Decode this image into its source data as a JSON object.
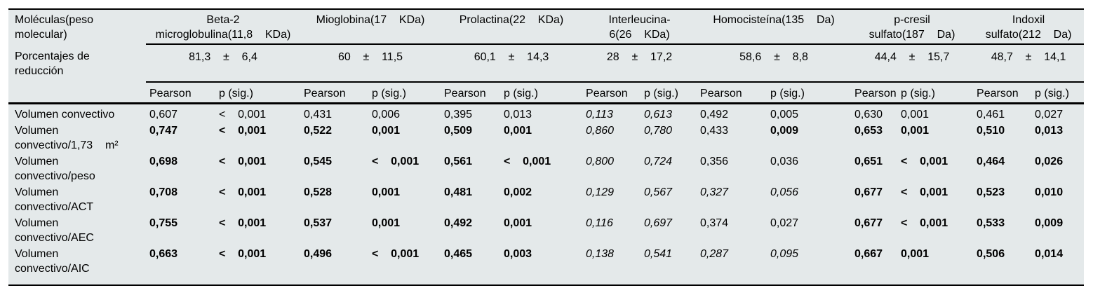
{
  "table": {
    "corner_header": "Moléculas(peso\nmolecular)",
    "reduction_label": "Porcentajes de\nreducción",
    "subheaders": {
      "pearson": "Pearson",
      "p": "p (sig.)"
    },
    "molecules": [
      {
        "name": "Beta-2\nmicroglobulina(11,8    KDa)",
        "reduction": "81,3    ±    6,4"
      },
      {
        "name": "Mioglobina(17    KDa)",
        "reduction": "60    ±    11,5"
      },
      {
        "name": "Prolactina(22    KDa)",
        "reduction": "60,1    ±    14,3"
      },
      {
        "name": "Interleucina-\n6(26    KDa)",
        "reduction": "28    ±    17,2"
      },
      {
        "name": "Homocisteína(135    Da)",
        "reduction": "58,6    ±    8,8"
      },
      {
        "name": "p-cresil\nsulfato(187    Da)",
        "reduction": "44,4    ±    15,7"
      },
      {
        "name": "Indoxil\nsulfato(212    Da)",
        "reduction": "48,7    ±    14,1"
      }
    ],
    "rows": [
      {
        "label": "Volumen convectivo",
        "cells": [
          {
            "t": "0,607",
            "s": "n"
          },
          {
            "t": "<    0,001",
            "s": "n"
          },
          {
            "t": "0,431",
            "s": "n"
          },
          {
            "t": "0,006",
            "s": "n"
          },
          {
            "t": "0,395",
            "s": "n"
          },
          {
            "t": "0,013",
            "s": "n"
          },
          {
            "t": "0,113",
            "s": "i"
          },
          {
            "t": "0,613",
            "s": "i"
          },
          {
            "t": "0,492",
            "s": "n"
          },
          {
            "t": "0,005",
            "s": "n"
          },
          {
            "t": "0,630",
            "s": "n"
          },
          {
            "t": "0,001",
            "s": "n"
          },
          {
            "t": "0,461",
            "s": "n"
          },
          {
            "t": "0,027",
            "s": "n"
          }
        ]
      },
      {
        "label": "Volumen\nconvectivo/1,73    m²",
        "cells": [
          {
            "t": "0,747",
            "s": "b"
          },
          {
            "t": "<    0,001",
            "s": "b"
          },
          {
            "t": "0,522",
            "s": "b"
          },
          {
            "t": "0,001",
            "s": "b"
          },
          {
            "t": "0,509",
            "s": "b"
          },
          {
            "t": "0,001",
            "s": "b"
          },
          {
            "t": "0,860",
            "s": "i"
          },
          {
            "t": "0,780",
            "s": "i"
          },
          {
            "t": "0,433",
            "s": "n"
          },
          {
            "t": "0,009",
            "s": "b"
          },
          {
            "t": "0,653",
            "s": "b"
          },
          {
            "t": "0,001",
            "s": "b"
          },
          {
            "t": "0,510",
            "s": "b"
          },
          {
            "t": "0,013",
            "s": "b"
          }
        ]
      },
      {
        "label": "Volumen\nconvectivo/peso",
        "cells": [
          {
            "t": "0,698",
            "s": "b"
          },
          {
            "t": "<    0,001",
            "s": "b"
          },
          {
            "t": "0,545",
            "s": "b"
          },
          {
            "t": "<    0,001",
            "s": "b"
          },
          {
            "t": "0,561",
            "s": "b"
          },
          {
            "t": "<    0,001",
            "s": "b"
          },
          {
            "t": "0,800",
            "s": "i"
          },
          {
            "t": "0,724",
            "s": "i"
          },
          {
            "t": "0,356",
            "s": "n"
          },
          {
            "t": "0,036",
            "s": "n"
          },
          {
            "t": "0,651",
            "s": "b"
          },
          {
            "t": "<    0,001",
            "s": "b"
          },
          {
            "t": "0,464",
            "s": "b"
          },
          {
            "t": "0,026",
            "s": "b"
          }
        ]
      },
      {
        "label": "Volumen\nconvectivo/ACT",
        "cells": [
          {
            "t": "0,708",
            "s": "b"
          },
          {
            "t": "<    0,001",
            "s": "b"
          },
          {
            "t": "0,528",
            "s": "b"
          },
          {
            "t": "0,001",
            "s": "b"
          },
          {
            "t": "0,481",
            "s": "b"
          },
          {
            "t": "0,002",
            "s": "b"
          },
          {
            "t": "0,129",
            "s": "i"
          },
          {
            "t": "0,567",
            "s": "i"
          },
          {
            "t": "0,327",
            "s": "i"
          },
          {
            "t": "0,056",
            "s": "i"
          },
          {
            "t": "0,677",
            "s": "b"
          },
          {
            "t": "<    0,001",
            "s": "b"
          },
          {
            "t": "0,523",
            "s": "b"
          },
          {
            "t": "0,010",
            "s": "b"
          }
        ]
      },
      {
        "label": "Volumen\nconvectivo/AEC",
        "cells": [
          {
            "t": "0,755",
            "s": "b"
          },
          {
            "t": "<    0,001",
            "s": "b"
          },
          {
            "t": "0,537",
            "s": "b"
          },
          {
            "t": "0,001",
            "s": "b"
          },
          {
            "t": "0,492",
            "s": "b"
          },
          {
            "t": "0,001",
            "s": "b"
          },
          {
            "t": "0,116",
            "s": "i"
          },
          {
            "t": "0,697",
            "s": "i"
          },
          {
            "t": "0,374",
            "s": "n"
          },
          {
            "t": "0,027",
            "s": "n"
          },
          {
            "t": "0,677",
            "s": "b"
          },
          {
            "t": "<    0,001",
            "s": "b"
          },
          {
            "t": "0,533",
            "s": "b"
          },
          {
            "t": "0,009",
            "s": "b"
          }
        ]
      },
      {
        "label": "Volumen\nconvectivo/AIC",
        "cells": [
          {
            "t": "0,663",
            "s": "b"
          },
          {
            "t": "<    0,001",
            "s": "b"
          },
          {
            "t": "0,496",
            "s": "b"
          },
          {
            "t": "<    0,001",
            "s": "b"
          },
          {
            "t": "0,465",
            "s": "b"
          },
          {
            "t": "0,003",
            "s": "b"
          },
          {
            "t": "0,138",
            "s": "i"
          },
          {
            "t": "0,541",
            "s": "i"
          },
          {
            "t": "0,287",
            "s": "i"
          },
          {
            "t": "0,095",
            "s": "i"
          },
          {
            "t": "0,667",
            "s": "b"
          },
          {
            "t": "0,001",
            "s": "b"
          },
          {
            "t": "0,506",
            "s": "b"
          },
          {
            "t": "0,014",
            "s": "b"
          }
        ]
      }
    ]
  }
}
